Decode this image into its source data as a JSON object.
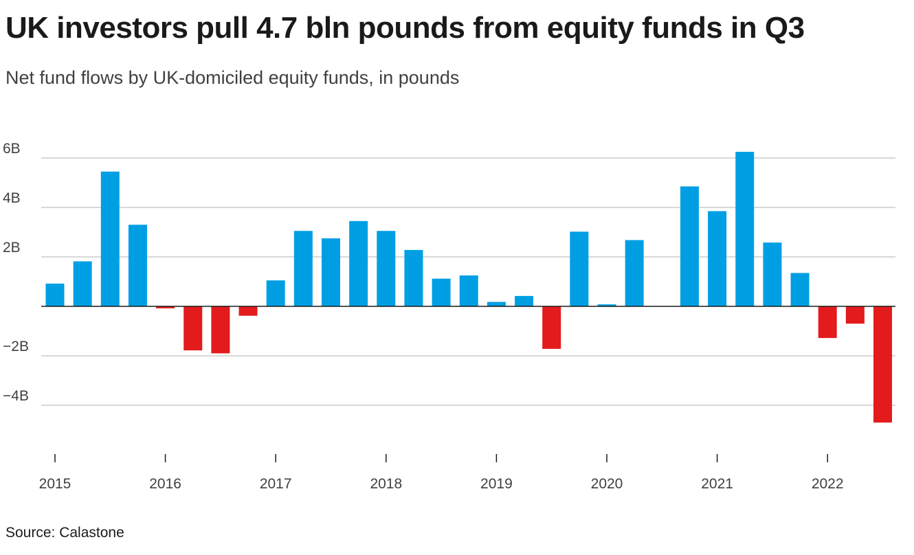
{
  "title": "UK investors pull 4.7 bln pounds from equity funds in Q3",
  "subtitle": "Net fund flows by UK-domiciled equity funds, in pounds",
  "source": "Source: Calastone",
  "colors": {
    "positive": "#009fe3",
    "negative": "#e31b1c",
    "grid": "#cccccc",
    "zero_line": "#1a1a1a"
  },
  "chart_data": {
    "type": "bar",
    "title": "UK investors pull 4.7 bln pounds from equity funds in Q3",
    "subtitle": "Net fund flows by UK-domiciled equity funds, in pounds",
    "xlabel": "",
    "ylabel": "",
    "ylim": [
      -5.6,
      6.6
    ],
    "grid": true,
    "legend": "none",
    "y_ticks": [
      6,
      4,
      2,
      0,
      -2,
      -4
    ],
    "y_tick_labels": [
      "6B",
      "4B",
      "2B",
      "",
      "−2B",
      "−4B"
    ],
    "x_tick_labels": [
      "2015",
      "2016",
      "2017",
      "2018",
      "2019",
      "2020",
      "2021",
      "2022"
    ],
    "categories": [
      "2015 Q1",
      "2015 Q2",
      "2015 Q3",
      "2015 Q4",
      "2016 Q1",
      "2016 Q2",
      "2016 Q3",
      "2016 Q4",
      "2017 Q1",
      "2017 Q2",
      "2017 Q3",
      "2017 Q4",
      "2018 Q1",
      "2018 Q2",
      "2018 Q3",
      "2018 Q4",
      "2019 Q1",
      "2019 Q2",
      "2019 Q3",
      "2019 Q4",
      "2020 Q1",
      "2020 Q2",
      "2020 Q3",
      "2020 Q4",
      "2021 Q1",
      "2021 Q2",
      "2021 Q3",
      "2021 Q4",
      "2022 Q1",
      "2022 Q2",
      "2022 Q3"
    ],
    "values": [
      0.92,
      1.82,
      5.45,
      3.3,
      -0.08,
      -1.78,
      -1.9,
      -0.38,
      1.05,
      3.05,
      2.75,
      3.45,
      3.05,
      2.28,
      1.12,
      1.25,
      0.18,
      0.42,
      -1.72,
      3.02,
      0.08,
      2.68,
      0,
      4.85,
      3.85,
      6.25,
      2.58,
      1.35,
      -1.28,
      -0.7,
      -4.7
    ]
  }
}
